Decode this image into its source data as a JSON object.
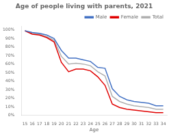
{
  "chart_data": {
    "type": "line",
    "title": "Age of people living with parents, 2021",
    "xlabel": "Age",
    "x": [
      15,
      16,
      17,
      18,
      19,
      20,
      21,
      22,
      23,
      24,
      25,
      26,
      27,
      28,
      29,
      30,
      31,
      32,
      33,
      34
    ],
    "series": [
      {
        "name": "Male",
        "color": "#4472c4",
        "values": [
          0.99,
          0.97,
          0.96,
          0.94,
          0.9,
          0.76,
          0.67,
          0.67,
          0.65,
          0.63,
          0.56,
          0.55,
          0.31,
          0.22,
          0.18,
          0.16,
          0.15,
          0.14,
          0.11,
          0.11
        ]
      },
      {
        "name": "Female",
        "color": "#e00000",
        "values": [
          0.99,
          0.95,
          0.94,
          0.91,
          0.86,
          0.62,
          0.51,
          0.54,
          0.54,
          0.52,
          0.45,
          0.35,
          0.13,
          0.09,
          0.07,
          0.06,
          0.05,
          0.04,
          0.03,
          0.03
        ]
      },
      {
        "name": "Total",
        "color": "#b0b0b0",
        "values": [
          0.99,
          0.96,
          0.95,
          0.92,
          0.88,
          0.69,
          0.6,
          0.61,
          0.6,
          0.58,
          0.51,
          0.46,
          0.22,
          0.16,
          0.13,
          0.11,
          0.1,
          0.09,
          0.07,
          0.07
        ]
      }
    ],
    "xlim": [
      14.5,
      34.5
    ],
    "xticks": [
      15,
      16,
      17,
      18,
      19,
      20,
      21,
      22,
      23,
      24,
      25,
      26,
      27,
      28,
      29,
      30,
      31,
      32,
      33,
      34
    ],
    "ylim": [
      0,
      1.04
    ],
    "yticks": [
      {
        "value": 0,
        "label": "0%"
      },
      {
        "value": 0.1,
        "label": "10%"
      },
      {
        "value": 0.2,
        "label": "20%"
      },
      {
        "value": 0.3,
        "label": "30%"
      },
      {
        "value": 0.4,
        "label": "40%"
      },
      {
        "value": 0.5,
        "label": "50%"
      },
      {
        "value": 0.6,
        "label": "60%"
      },
      {
        "value": 0.7,
        "label": "70%"
      },
      {
        "value": 0.8,
        "label": "80%"
      },
      {
        "value": 0.9,
        "label": "90%"
      },
      {
        "value": 1.0,
        "label": "100%"
      }
    ],
    "grid": false,
    "legend": "upper right"
  }
}
